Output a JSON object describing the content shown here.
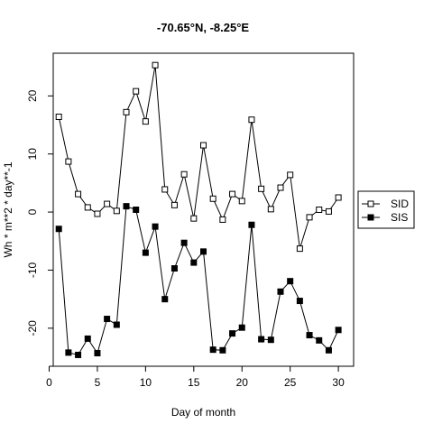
{
  "chart_data": {
    "type": "line",
    "title": "-70.65°N, -8.25°E",
    "xlabel": "Day of month",
    "ylabel": "Wh * m**2 * day**-1",
    "xlim": [
      0.42,
      31.58
    ],
    "ylim": [
      -26.55,
      27.35
    ],
    "x_ticks": [
      0,
      5,
      10,
      15,
      20,
      25,
      30
    ],
    "y_ticks": [
      -20,
      -10,
      0,
      10,
      20
    ],
    "legend_position": "right",
    "grid": false,
    "x": [
      1,
      2,
      3,
      4,
      5,
      6,
      7,
      8,
      9,
      10,
      11,
      12,
      13,
      14,
      15,
      16,
      17,
      18,
      19,
      20,
      21,
      22,
      23,
      24,
      25,
      26,
      27,
      28,
      29,
      30
    ],
    "series": [
      {
        "name": "SID",
        "marker": "open-square",
        "values": [
          16.4,
          8.7,
          3.1,
          0.8,
          -0.3,
          1.4,
          0.2,
          17.2,
          20.8,
          15.6,
          25.3,
          3.9,
          1.2,
          6.5,
          -1.1,
          11.5,
          2.3,
          -1.3,
          3.1,
          1.9,
          15.9,
          4.0,
          0.5,
          4.2,
          6.4,
          -6.3,
          -0.9,
          0.4,
          0.1,
          2.5
        ]
      },
      {
        "name": "SIS",
        "marker": "filled-square",
        "values": [
          -2.9,
          -24.2,
          -24.6,
          -21.8,
          -24.3,
          -18.4,
          -19.4,
          1.0,
          0.4,
          -7.0,
          -2.5,
          -15.0,
          -9.7,
          -5.3,
          -8.7,
          -6.8,
          -23.7,
          -23.8,
          -20.9,
          -19.9,
          -2.2,
          -21.9,
          -22.0,
          -13.7,
          -11.9,
          -15.3,
          -21.2,
          -22.1,
          -23.8,
          -20.3
        ]
      }
    ]
  }
}
